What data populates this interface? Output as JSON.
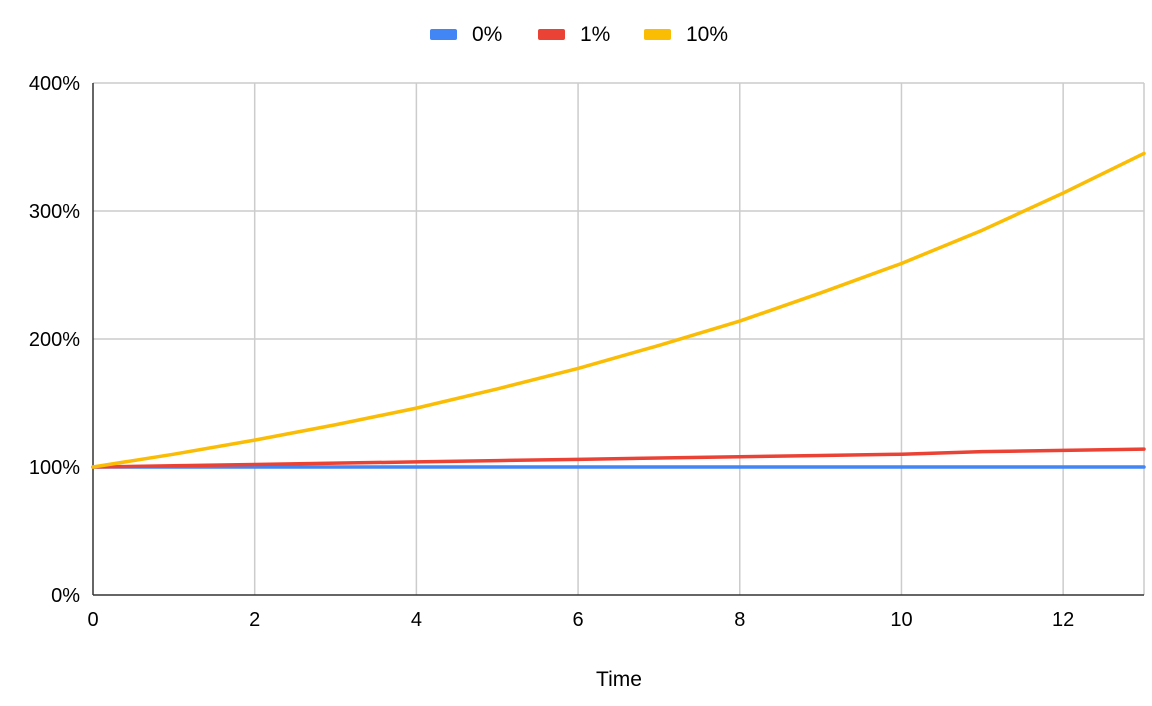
{
  "chart_data": {
    "type": "line",
    "title": "",
    "xlabel": "Time",
    "ylabel": "",
    "xlim": [
      0,
      13
    ],
    "ylim": [
      0,
      400
    ],
    "x_ticks": [
      0,
      2,
      4,
      6,
      8,
      10,
      12
    ],
    "y_ticks": [
      0,
      100,
      200,
      300,
      400
    ],
    "y_tick_labels": [
      "0%",
      "100%",
      "200%",
      "300%",
      "400%"
    ],
    "grid": true,
    "legend_position": "top",
    "x": [
      0,
      1,
      2,
      3,
      4,
      5,
      6,
      7,
      8,
      9,
      10,
      11,
      12,
      13
    ],
    "series": [
      {
        "name": "0%",
        "color": "#4285F4",
        "values": [
          100,
          100,
          100,
          100,
          100,
          100,
          100,
          100,
          100,
          100,
          100,
          100,
          100,
          100
        ]
      },
      {
        "name": "1%",
        "color": "#EA4335",
        "values": [
          100,
          101,
          102,
          103,
          104,
          105,
          106,
          107,
          108,
          109,
          110,
          112,
          113,
          114
        ]
      },
      {
        "name": "10%",
        "color": "#FBBC04",
        "values": [
          100,
          110,
          121,
          133,
          146,
          161,
          177,
          195,
          214,
          236,
          259,
          285,
          314,
          345
        ]
      }
    ]
  }
}
